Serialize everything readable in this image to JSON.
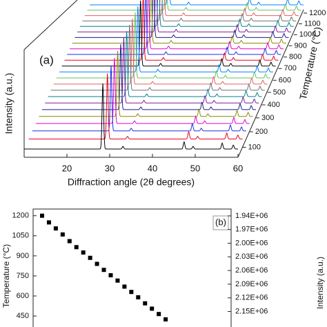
{
  "chart_data": [
    {
      "type": "waterfall",
      "panel_label": "(a)",
      "xlabel": "Diffraction angle (2θ degrees)",
      "ylabel": "Intensity (a.u.)",
      "zlabel": "Temperature (°C)",
      "xlim": [
        10,
        60
      ],
      "xticks": [
        20,
        30,
        40,
        50,
        60
      ],
      "zlim": [
        50,
        1200
      ],
      "zticks": [
        100,
        200,
        300,
        400,
        500,
        600,
        700,
        800,
        900,
        1000,
        1100,
        1200
      ],
      "temperatures": [
        50,
        100,
        150,
        200,
        250,
        300,
        350,
        400,
        450,
        500,
        550,
        600,
        650,
        700,
        750,
        800,
        850,
        900,
        950,
        1000,
        1050,
        1100,
        1150,
        1200
      ],
      "colors": [
        "#000000",
        "#e8001c",
        "#1a2ee6",
        "#e000c8",
        "#8a8a00",
        "#1a1a8a",
        "#7a1aa0",
        "#00808a",
        "#707070",
        "#e06060",
        "#60c060",
        "#0080ff"
      ],
      "peak_positions": [
        28.4,
        33.1,
        47.4,
        49.5,
        56.3,
        58.9
      ],
      "peak_heights": [
        100,
        4,
        11,
        4,
        9,
        6
      ],
      "peak_width": 0.18
    },
    {
      "type": "scatter",
      "panel_label": "(b)",
      "ylabel": "Temperature (°C)",
      "y2label": "Intensity (a.u.)",
      "categories": [
        null,
        null,
        null,
        null,
        null,
        null,
        null,
        null,
        null,
        null,
        null,
        null,
        null,
        null,
        null,
        null,
        null,
        null,
        null
      ],
      "values": [
        1200,
        1150,
        1105,
        1060,
        1010,
        965,
        925,
        885,
        840,
        795,
        755,
        715,
        670,
        630,
        590,
        545,
        505,
        465,
        425
      ],
      "color": "#000000",
      "ylim": [
        368,
        1250
      ],
      "yticks": [
        450,
        600,
        750,
        900,
        1050,
        1200
      ],
      "y2lim": [
        2184000,
        1925000
      ],
      "y2ticks": [
        {
          "value": 1940000,
          "label": "1.94E+06"
        },
        {
          "value": 1970000,
          "label": "1.97E+06"
        },
        {
          "value": 2000000,
          "label": "2.00E+06"
        },
        {
          "value": 2030000,
          "label": "2.03E+06"
        },
        {
          "value": 2060000,
          "label": "2.06E+06"
        },
        {
          "value": 2090000,
          "label": "2.09E+06"
        },
        {
          "value": 2120000,
          "label": "2.12E+06"
        },
        {
          "value": 2150000,
          "label": "2.15E+06"
        }
      ]
    }
  ]
}
